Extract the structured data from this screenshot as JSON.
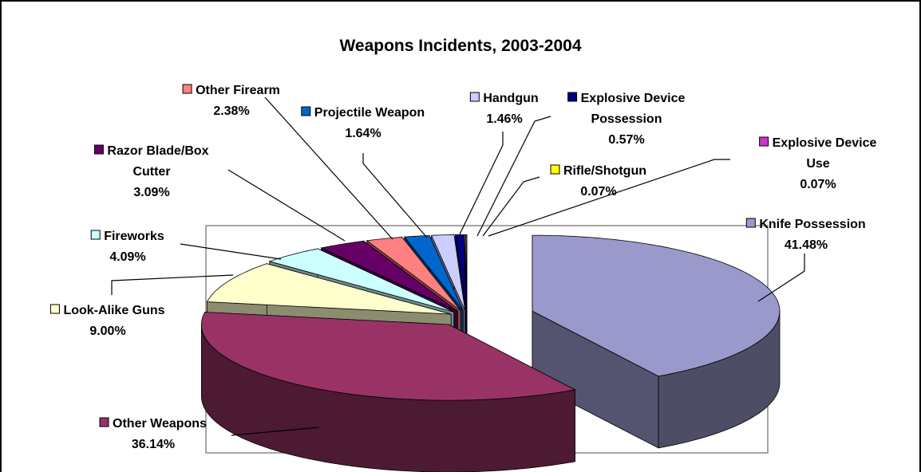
{
  "chart_data": {
    "type": "pie",
    "title": "Weapons Incidents, 2003-2004",
    "categories": [
      "Knife Possession",
      "Other Weapons",
      "Look-Alike Guns",
      "Fireworks",
      "Razor Blade/Box Cutter",
      "Other Firearm",
      "Projectile Weapon",
      "Handgun",
      "Explosive Device Possession",
      "Rifle/Shotgun",
      "Explosive Device Use"
    ],
    "values": [
      41.48,
      36.14,
      9.0,
      4.09,
      3.09,
      2.38,
      1.64,
      1.46,
      0.57,
      0.07,
      0.07
    ],
    "value_labels": [
      "41.48%",
      "36.14%",
      "9.00%",
      "4.09%",
      "3.09%",
      "2.38%",
      "1.64%",
      "1.46%",
      "0.57%",
      "0.07%",
      "0.07%"
    ],
    "colors": [
      "#9999cc",
      "#993366",
      "#ffffcc",
      "#ccffff",
      "#660066",
      "#ff8080",
      "#0066cc",
      "#ccccff",
      "#000080",
      "#ffff00",
      "#cc33cc"
    ]
  }
}
